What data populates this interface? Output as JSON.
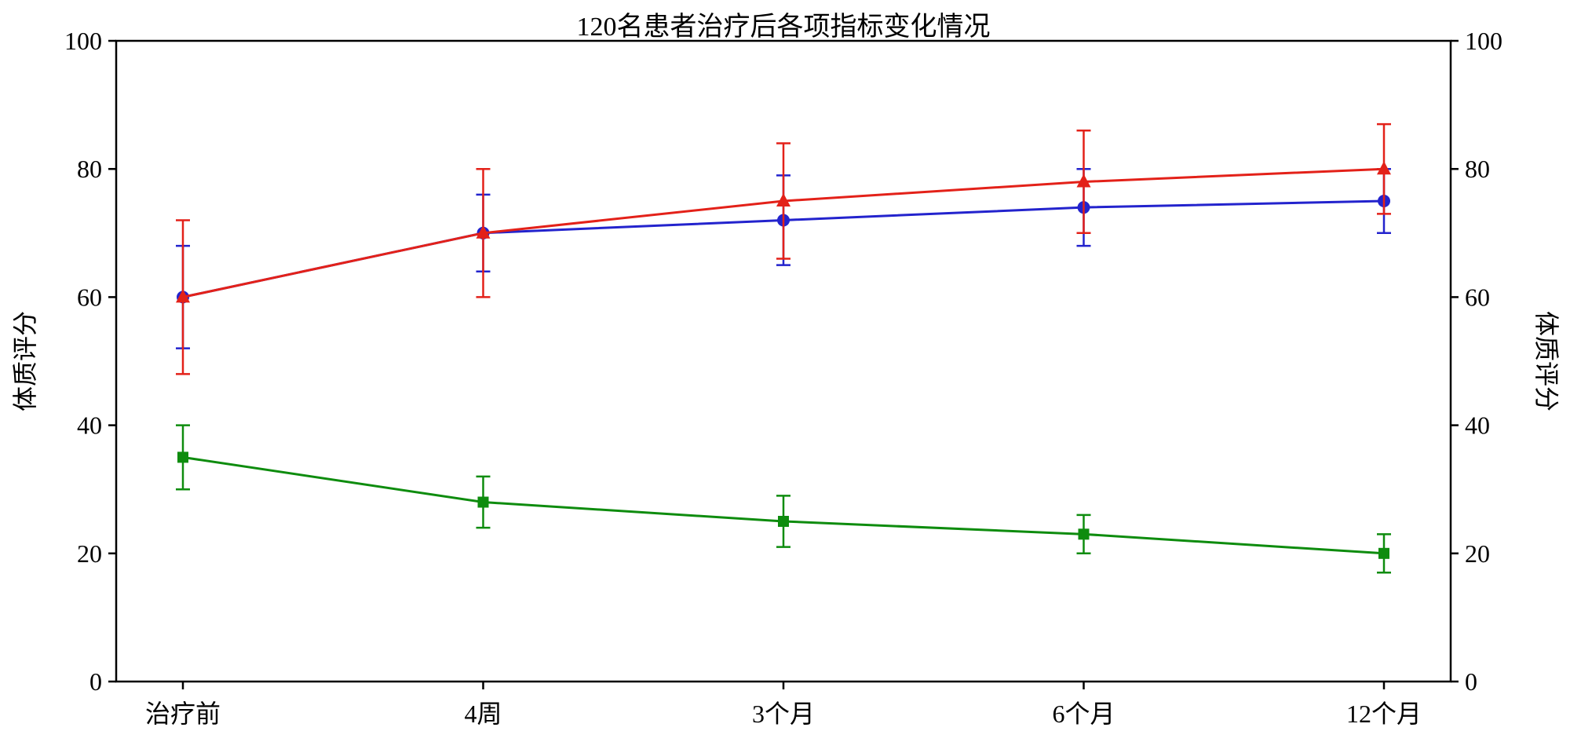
{
  "chart_data": {
    "type": "line",
    "title": "120名患者治疗后各项指标变化情况",
    "ylabel_left": "体质评分",
    "ylabel_right": "体质评分",
    "xlabel": "",
    "categories": [
      "治疗前",
      "4周",
      "3个月",
      "6个月",
      "12个月"
    ],
    "ylim": [
      0,
      100
    ],
    "yticks": [
      0,
      20,
      40,
      60,
      80,
      100
    ],
    "grid": false,
    "legend_position": "none",
    "x_margin": 0.05,
    "error_bars": true,
    "series": [
      {
        "id": "series-red-triangle",
        "color": "#e32119",
        "marker": "triangle",
        "values": [
          60,
          70,
          75,
          78,
          80
        ],
        "errors": [
          12,
          10,
          9,
          8,
          7
        ]
      },
      {
        "id": "series-blue-circle",
        "color": "#2323cd",
        "marker": "circle",
        "values": [
          60,
          70,
          72,
          74,
          75
        ],
        "errors": [
          8,
          6,
          7,
          6,
          5
        ]
      },
      {
        "id": "series-green-square",
        "color": "#0e8c0e",
        "marker": "square",
        "values": [
          35,
          28,
          25,
          23,
          20
        ],
        "errors": [
          5,
          4,
          4,
          3,
          3
        ]
      }
    ]
  }
}
